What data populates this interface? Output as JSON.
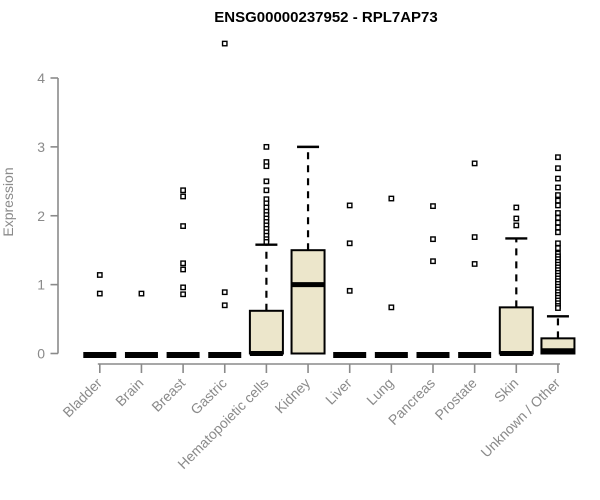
{
  "chart_data": {
    "type": "boxplot",
    "title": "ENSG00000237952 - RPL7AP73",
    "xlabel": "",
    "ylabel": "Expression",
    "ylim": [
      0,
      4
    ],
    "yticks": [
      0,
      1,
      2,
      3,
      4
    ],
    "grid": false,
    "legend": "none",
    "categories": [
      "Bladder",
      "Brain",
      "Breast",
      "Gastric",
      "Hematopoietic cells",
      "Kidney",
      "Liver",
      "Lung",
      "Pancreas",
      "Prostate",
      "Skin",
      "Unknown / Other"
    ],
    "series": [
      {
        "category": "Bladder",
        "q1": 0,
        "median": 0,
        "q3": 0,
        "whisker_low": 0,
        "whisker_high": 0,
        "outliers": [
          1.14,
          0.87
        ]
      },
      {
        "category": "Brain",
        "q1": 0,
        "median": 0,
        "q3": 0,
        "whisker_low": 0,
        "whisker_high": 0,
        "outliers": [
          0.87
        ]
      },
      {
        "category": "Breast",
        "q1": 0,
        "median": 0,
        "q3": 0,
        "whisker_low": 0,
        "whisker_high": 0,
        "outliers": [
          2.37,
          2.28,
          1.85,
          1.31,
          1.22,
          0.96,
          0.86
        ]
      },
      {
        "category": "Gastric",
        "q1": 0,
        "median": 0,
        "q3": 0,
        "whisker_low": 0,
        "whisker_high": 0,
        "outliers": [
          4.5,
          0.89,
          0.7
        ]
      },
      {
        "category": "Hematopoietic cells",
        "q1": 0,
        "median": 0,
        "q3": 0.62,
        "whisker_low": 0,
        "whisker_high": 1.58,
        "outliers": [
          3.0,
          2.78,
          2.72,
          2.5,
          2.37,
          2.24,
          2.18,
          2.12,
          2.06,
          2.01,
          1.96,
          1.91,
          1.86,
          1.81,
          1.76,
          1.71,
          1.66,
          1.62
        ]
      },
      {
        "category": "Kidney",
        "q1": 0,
        "median": 1.0,
        "q3": 1.5,
        "whisker_low": 0,
        "whisker_high": 3.0,
        "outliers": []
      },
      {
        "category": "Liver",
        "q1": 0,
        "median": 0,
        "q3": 0,
        "whisker_low": 0,
        "whisker_high": 0,
        "outliers": [
          2.15,
          1.6,
          0.91
        ]
      },
      {
        "category": "Lung",
        "q1": 0,
        "median": 0,
        "q3": 0,
        "whisker_low": 0,
        "whisker_high": 0,
        "outliers": [
          2.25,
          0.67
        ]
      },
      {
        "category": "Pancreas",
        "q1": 0,
        "median": 0,
        "q3": 0,
        "whisker_low": 0,
        "whisker_high": 0,
        "outliers": [
          2.14,
          1.66,
          1.34
        ]
      },
      {
        "category": "Prostate",
        "q1": 0,
        "median": 0,
        "q3": 0,
        "whisker_low": 0,
        "whisker_high": 0,
        "outliers": [
          2.76,
          1.69,
          1.3
        ]
      },
      {
        "category": "Skin",
        "q1": 0,
        "median": 0,
        "q3": 0.67,
        "whisker_low": 0,
        "whisker_high": 1.67,
        "outliers": [
          2.12,
          1.96,
          1.86
        ]
      },
      {
        "category": "Unknown / Other",
        "q1": 0,
        "median": 0.04,
        "q3": 0.22,
        "whisker_low": 0,
        "whisker_high": 0.54,
        "outliers": [
          2.85,
          2.69,
          2.54,
          2.41,
          2.3,
          2.22,
          2.15,
          2.04,
          1.97,
          1.9,
          1.83,
          1.76,
          1.6,
          1.53,
          1.45,
          1.41,
          1.37,
          1.33,
          1.29,
          1.25,
          1.21,
          1.17,
          1.13,
          1.09,
          1.05,
          1.01,
          0.97,
          0.93,
          0.89,
          0.85,
          0.81,
          0.77,
          0.73,
          0.69,
          0.66
        ]
      }
    ],
    "colors": {
      "box_fill": "#ECE6CB",
      "box_border": "#000000",
      "median": "#000000",
      "whisker": "#000000",
      "axis": "#8A8A8A",
      "tick_label": "#8A8A8A",
      "title": "#000000",
      "background": "#FFFFFF"
    }
  }
}
